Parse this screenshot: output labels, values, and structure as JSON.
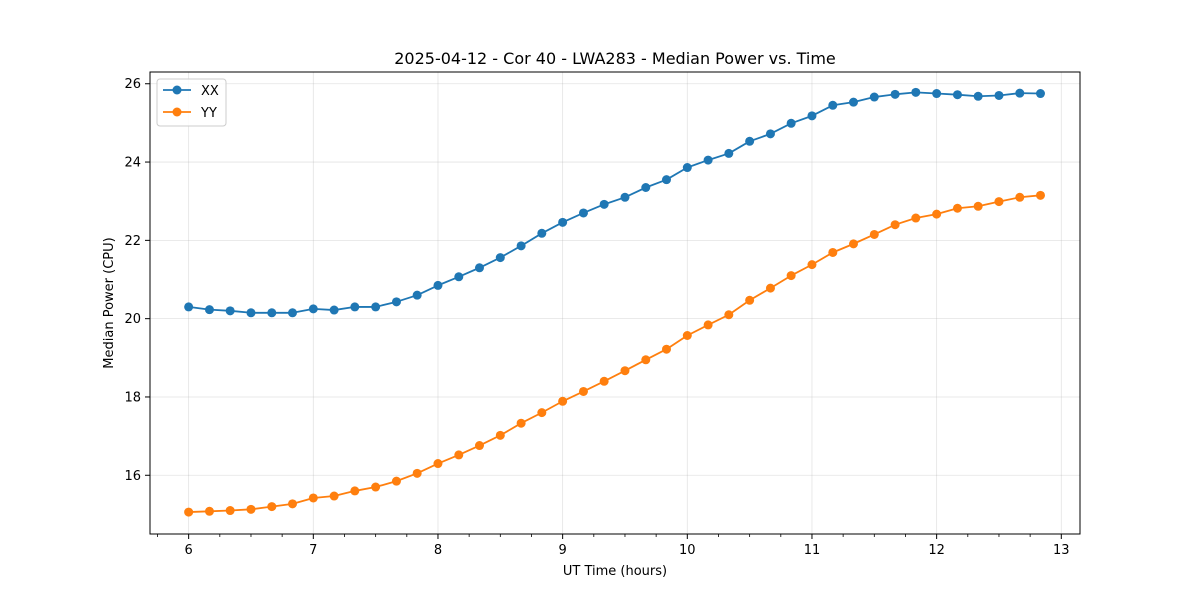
{
  "chart_data": {
    "type": "line",
    "title": "2025-04-12 - Cor 40 - LWA283 - Median Power vs. Time",
    "xlabel": "UT Time (hours)",
    "ylabel": "Median Power (CPU)",
    "xlim": [
      5.69,
      13.15
    ],
    "ylim": [
      14.5,
      26.3
    ],
    "xticks": [
      6,
      7,
      8,
      9,
      10,
      11,
      12,
      13
    ],
    "yticks": [
      16,
      18,
      20,
      22,
      24,
      26
    ],
    "grid": true,
    "legend_position": "top-left",
    "colors": {
      "XX": "#1f77b4",
      "YY": "#ff7f0e"
    },
    "x": [
      6.0,
      6.167,
      6.333,
      6.5,
      6.667,
      6.833,
      7.0,
      7.167,
      7.333,
      7.5,
      7.667,
      7.833,
      8.0,
      8.167,
      8.333,
      8.5,
      8.667,
      8.833,
      9.0,
      9.167,
      9.333,
      9.5,
      9.667,
      9.833,
      10.0,
      10.167,
      10.333,
      10.5,
      10.667,
      10.833,
      11.0,
      11.167,
      11.333,
      11.5,
      11.667,
      11.833,
      12.0,
      12.167,
      12.333,
      12.5,
      12.667,
      12.833
    ],
    "series": [
      {
        "name": "XX",
        "values": [
          20.3,
          20.23,
          20.2,
          20.15,
          20.15,
          20.15,
          20.25,
          20.22,
          20.3,
          20.3,
          20.43,
          20.6,
          20.85,
          21.07,
          21.3,
          21.56,
          21.86,
          22.18,
          22.46,
          22.7,
          22.92,
          23.1,
          23.35,
          23.55,
          23.86,
          24.05,
          24.22,
          24.53,
          24.72,
          24.99,
          25.18,
          25.45,
          25.53,
          25.66,
          25.73,
          25.78,
          25.75,
          25.72,
          25.68,
          25.7,
          25.76,
          25.75
        ]
      },
      {
        "name": "YY",
        "values": [
          15.06,
          15.08,
          15.1,
          15.13,
          15.2,
          15.27,
          15.42,
          15.47,
          15.6,
          15.7,
          15.85,
          16.05,
          16.3,
          16.52,
          16.76,
          17.02,
          17.33,
          17.6,
          17.89,
          18.14,
          18.4,
          18.67,
          18.95,
          19.22,
          19.57,
          19.84,
          20.1,
          20.47,
          20.78,
          21.1,
          21.38,
          21.69,
          21.91,
          22.15,
          22.4,
          22.57,
          22.67,
          22.82,
          22.87,
          22.99,
          23.1,
          23.15
        ]
      }
    ]
  }
}
